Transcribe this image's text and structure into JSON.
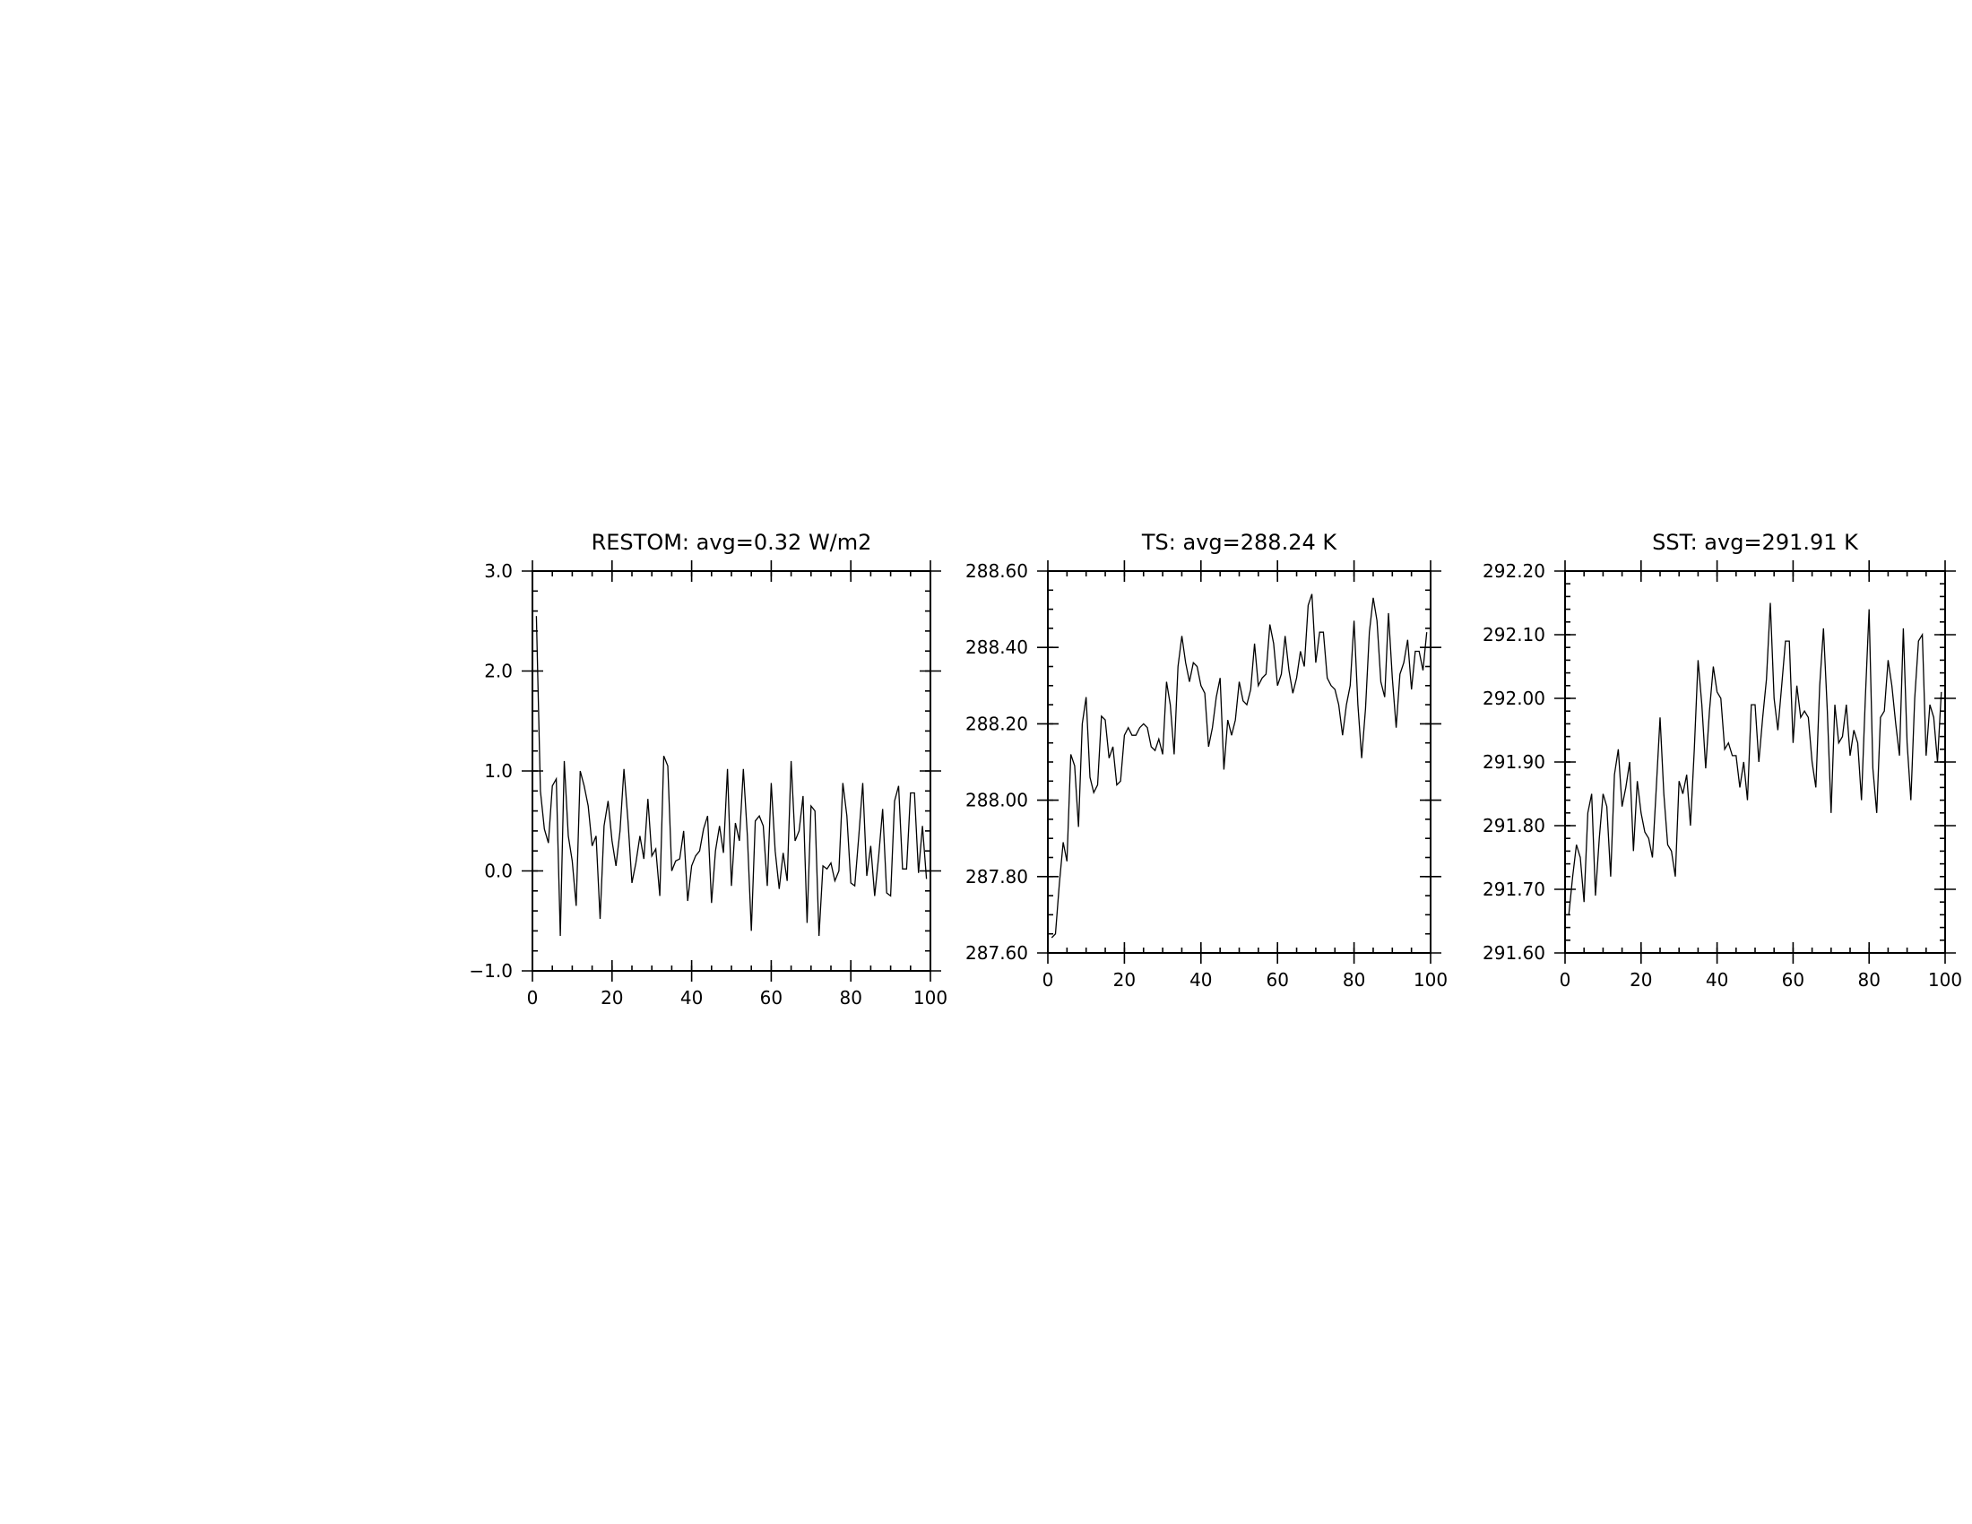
{
  "chart_data": [
    {
      "type": "line",
      "title": "RESTOM: avg=0.32 W/m2",
      "xlim": [
        0,
        100
      ],
      "ylim": [
        -1.0,
        3.0
      ],
      "x_ticks": [
        0,
        20,
        40,
        60,
        80,
        100
      ],
      "x_tick_labels": [
        "0",
        "20",
        "40",
        "60",
        "80",
        "100"
      ],
      "y_ticks": [
        -1.0,
        0.0,
        1.0,
        2.0,
        3.0
      ],
      "y_tick_labels": [
        "−1.0",
        "0.0",
        "1.0",
        "2.0",
        "3.0"
      ],
      "x_minor": 5,
      "y_minor": 0.2,
      "grid": false,
      "series": [
        {
          "x_start": 1,
          "x_step": 1,
          "values": [
            2.55,
            0.8,
            0.42,
            0.28,
            0.85,
            0.92,
            -0.65,
            1.1,
            0.35,
            0.1,
            -0.35,
            1.0,
            0.85,
            0.65,
            0.25,
            0.35,
            -0.48,
            0.45,
            0.7,
            0.3,
            0.05,
            0.4,
            1.02,
            0.5,
            -0.12,
            0.08,
            0.35,
            0.12,
            0.72,
            0.15,
            0.22,
            -0.25,
            1.15,
            1.05,
            0.0,
            0.1,
            0.12,
            0.4,
            -0.3,
            0.05,
            0.15,
            0.2,
            0.42,
            0.55,
            -0.32,
            0.2,
            0.45,
            0.18,
            1.02,
            -0.15,
            0.48,
            0.3,
            1.02,
            0.35,
            -0.6,
            0.5,
            0.55,
            0.45,
            -0.15,
            0.88,
            0.2,
            -0.18,
            0.18,
            -0.1,
            1.1,
            0.3,
            0.4,
            0.75,
            -0.52,
            0.65,
            0.6,
            -0.65,
            0.05,
            0.02,
            0.08,
            -0.1,
            0.0,
            0.88,
            0.55,
            -0.12,
            -0.15,
            0.35,
            0.88,
            -0.05,
            0.25,
            -0.25,
            0.15,
            0.62,
            -0.22,
            -0.25,
            0.7,
            0.85,
            0.02,
            0.02,
            0.78,
            0.78,
            -0.02,
            0.45,
            -0.08
          ]
        }
      ]
    },
    {
      "type": "line",
      "title": "TS: avg=288.24 K",
      "xlim": [
        0,
        100
      ],
      "ylim": [
        287.6,
        288.6
      ],
      "x_ticks": [
        0,
        20,
        40,
        60,
        80,
        100
      ],
      "x_tick_labels": [
        "0",
        "20",
        "40",
        "60",
        "80",
        "100"
      ],
      "y_ticks": [
        287.6,
        287.8,
        288.0,
        288.2,
        288.4,
        288.6
      ],
      "y_tick_labels": [
        "287.60",
        "287.80",
        "288.00",
        "288.20",
        "288.40",
        "288.60"
      ],
      "x_minor": 5,
      "y_minor": 0.05,
      "grid": false,
      "series": [
        {
          "x_start": 1,
          "x_step": 1,
          "values": [
            287.64,
            287.65,
            287.78,
            287.89,
            287.84,
            288.12,
            288.09,
            287.93,
            288.2,
            288.27,
            288.06,
            288.02,
            288.04,
            288.22,
            288.21,
            288.11,
            288.14,
            288.04,
            288.05,
            288.17,
            288.19,
            288.17,
            288.17,
            288.19,
            288.2,
            288.19,
            288.14,
            288.13,
            288.16,
            288.12,
            288.31,
            288.25,
            288.12,
            288.35,
            288.43,
            288.36,
            288.31,
            288.36,
            288.35,
            288.3,
            288.28,
            288.14,
            288.19,
            288.27,
            288.32,
            288.08,
            288.21,
            288.17,
            288.21,
            288.31,
            288.26,
            288.25,
            288.29,
            288.41,
            288.3,
            288.32,
            288.33,
            288.46,
            288.41,
            288.3,
            288.33,
            288.43,
            288.34,
            288.28,
            288.32,
            288.39,
            288.35,
            288.51,
            288.54,
            288.36,
            288.44,
            288.44,
            288.32,
            288.3,
            288.29,
            288.25,
            288.17,
            288.25,
            288.3,
            288.47,
            288.25,
            288.11,
            288.24,
            288.44,
            288.53,
            288.47,
            288.31,
            288.27,
            288.49,
            288.32,
            288.19,
            288.33,
            288.36,
            288.42,
            288.29,
            288.39,
            288.39,
            288.34,
            288.44
          ]
        }
      ]
    },
    {
      "type": "line",
      "title": "SST: avg=291.91 K",
      "xlim": [
        0,
        100
      ],
      "ylim": [
        291.6,
        292.2
      ],
      "x_ticks": [
        0,
        20,
        40,
        60,
        80,
        100
      ],
      "x_tick_labels": [
        "0",
        "20",
        "40",
        "60",
        "80",
        "100"
      ],
      "y_ticks": [
        291.6,
        291.7,
        291.8,
        291.9,
        292.0,
        292.1,
        292.2
      ],
      "y_tick_labels": [
        "291.60",
        "291.70",
        "291.80",
        "291.90",
        "292.00",
        "292.10",
        "292.20"
      ],
      "x_minor": 5,
      "y_minor": 0.02,
      "grid": false,
      "series": [
        {
          "x_start": 1,
          "x_step": 1,
          "values": [
            291.66,
            291.72,
            291.77,
            291.75,
            291.68,
            291.82,
            291.85,
            291.69,
            291.78,
            291.85,
            291.83,
            291.72,
            291.88,
            291.92,
            291.83,
            291.86,
            291.9,
            291.76,
            291.87,
            291.82,
            291.79,
            291.78,
            291.75,
            291.86,
            291.97,
            291.85,
            291.77,
            291.76,
            291.72,
            291.87,
            291.85,
            291.88,
            291.8,
            291.92,
            292.06,
            291.99,
            291.89,
            291.98,
            292.05,
            292.01,
            292.0,
            291.92,
            291.93,
            291.91,
            291.91,
            291.86,
            291.9,
            291.84,
            291.99,
            291.99,
            291.9,
            291.97,
            292.03,
            292.15,
            292.0,
            291.95,
            292.02,
            292.09,
            292.09,
            291.93,
            292.02,
            291.97,
            291.98,
            291.97,
            291.9,
            291.86,
            292.02,
            292.11,
            291.98,
            291.82,
            291.99,
            291.93,
            291.94,
            291.99,
            291.91,
            291.95,
            291.93,
            291.84,
            292.0,
            292.14,
            291.89,
            291.82,
            291.97,
            291.98,
            292.06,
            292.02,
            291.96,
            291.91,
            292.11,
            291.93,
            291.84,
            292.0,
            292.09,
            292.1,
            291.91,
            291.99,
            291.97,
            291.9,
            292.01
          ]
        }
      ]
    }
  ]
}
